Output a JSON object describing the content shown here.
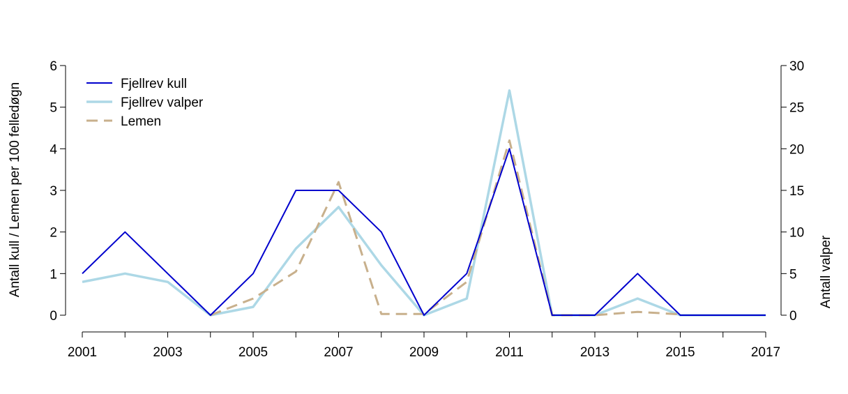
{
  "chart_data": {
    "type": "line",
    "title": "",
    "x": [
      2001,
      2002,
      2003,
      2004,
      2005,
      2006,
      2007,
      2008,
      2009,
      2010,
      2011,
      2012,
      2013,
      2014,
      2015,
      2016,
      2017
    ],
    "x_tick_labels": [
      "2001",
      "2003",
      "2005",
      "2007",
      "2009",
      "2011",
      "2013",
      "2015",
      "2017"
    ],
    "xlim": [
      2001,
      2017
    ],
    "ylabel_left": "Antall kull / Lemen per 100 felledøgn",
    "ylim_left": [
      0,
      6
    ],
    "y_ticks_left": [
      "0",
      "1",
      "2",
      "3",
      "4",
      "5",
      "6"
    ],
    "ylabel_right": "Antall valper",
    "ylim_right": [
      0,
      30
    ],
    "y_ticks_right": [
      "0",
      "5",
      "10",
      "15",
      "20",
      "25",
      "30"
    ],
    "legend_position": "top-left",
    "grid": false,
    "series": [
      {
        "name": "Fjellrev kull",
        "axis": "left",
        "color": "#0000cd",
        "style": "solid",
        "values": [
          1,
          2,
          1,
          0,
          1,
          3,
          3,
          2,
          0,
          1,
          4,
          0,
          0,
          1,
          0,
          0,
          0
        ]
      },
      {
        "name": "Fjellrev valper",
        "axis": "right",
        "color": "#add8e6",
        "style": "solid",
        "values": [
          4,
          5,
          4,
          0,
          1,
          8,
          13,
          6,
          0,
          2,
          27,
          0,
          0,
          2,
          0,
          0,
          0
        ]
      },
      {
        "name": "Lemen",
        "axis": "left",
        "color": "#c8b08c",
        "style": "dashed",
        "values": [
          null,
          null,
          null,
          0.0,
          0.4,
          1.05,
          3.2,
          0.03,
          0.03,
          0.8,
          4.2,
          0.0,
          0.0,
          0.08,
          0.02,
          null,
          null
        ]
      }
    ]
  }
}
